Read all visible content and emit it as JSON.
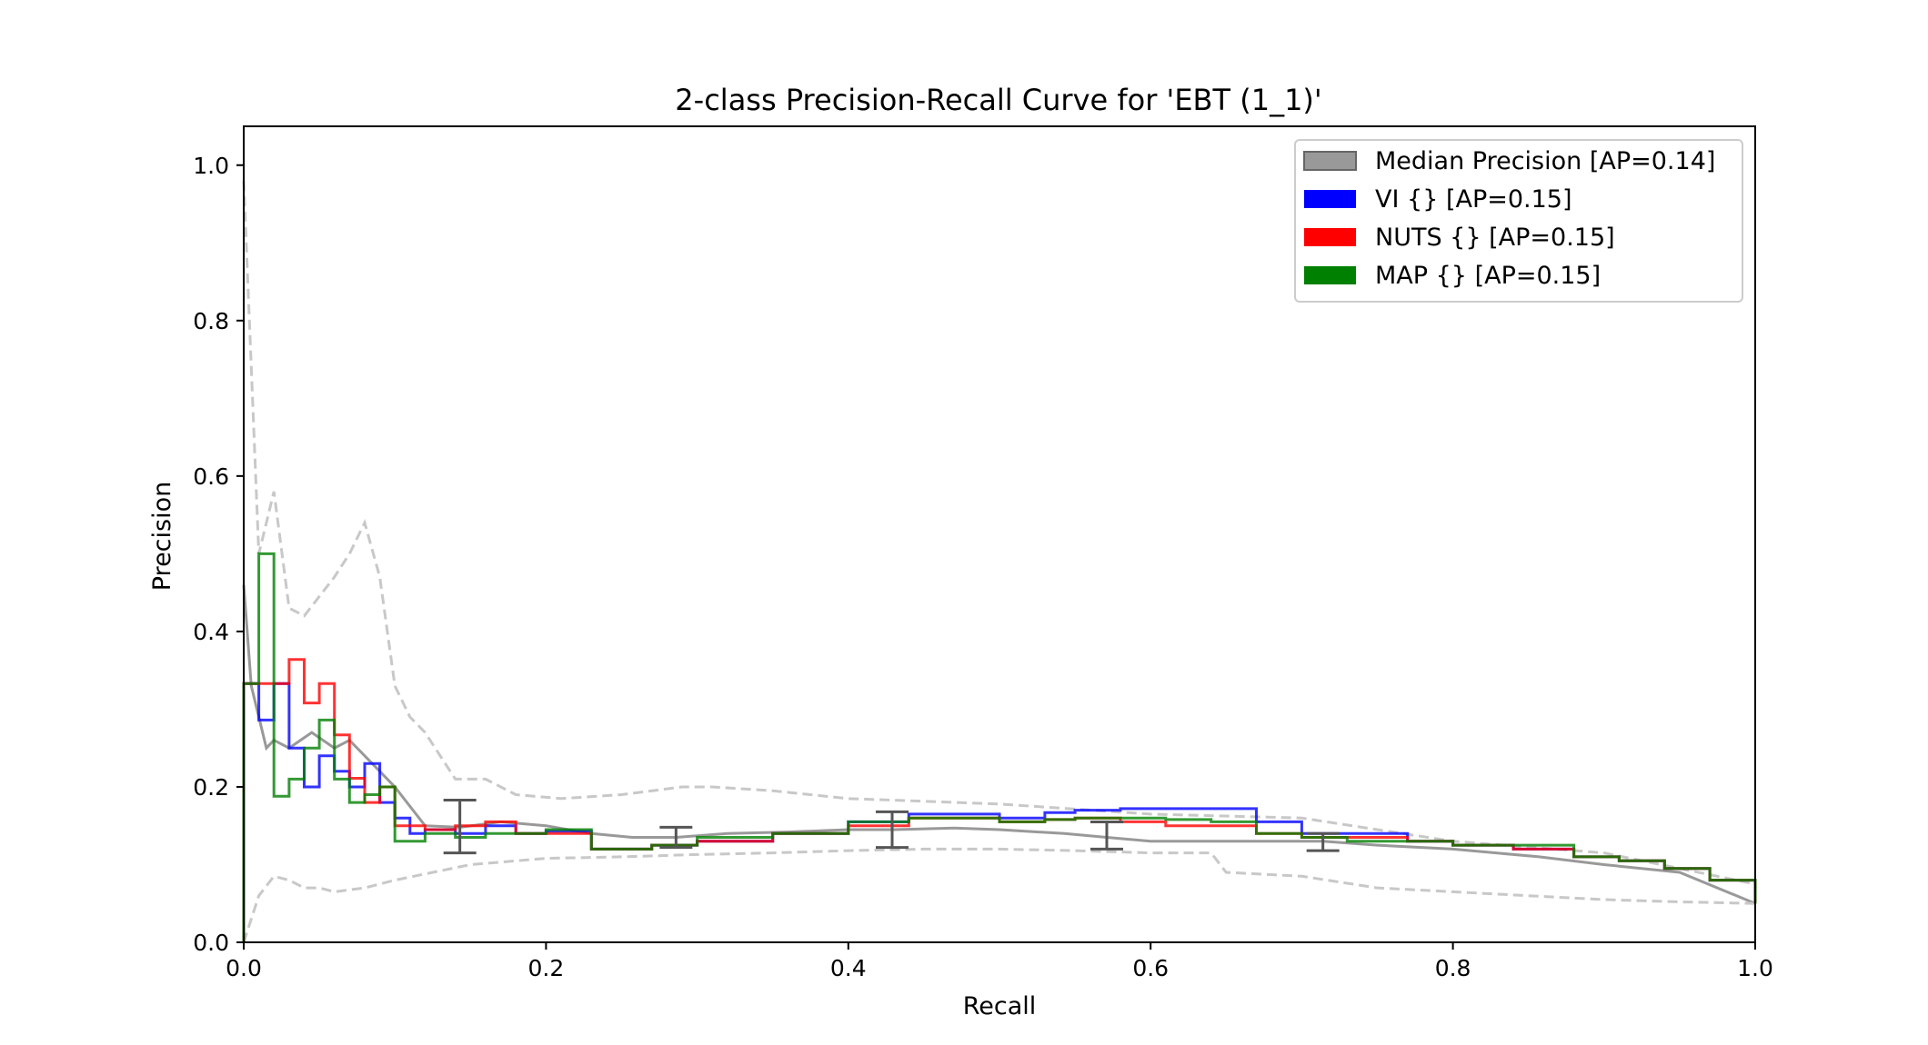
{
  "chart_data": {
    "type": "line",
    "title": "2-class Precision-Recall Curve for 'EBT (1_1)'",
    "xlabel": "Recall",
    "ylabel": "Precision",
    "xlim": [
      0,
      1
    ],
    "ylim": [
      0,
      1.05
    ],
    "xticks": [
      "0.0",
      "0.2",
      "0.4",
      "0.6",
      "0.8",
      "1.0"
    ],
    "yticks": [
      "0.0",
      "0.2",
      "0.4",
      "0.6",
      "0.8",
      "1.0"
    ],
    "grid": false,
    "legend_position": "top-right",
    "series": [
      {
        "name": "Median Precision [AP=0.14]",
        "color": "#808080",
        "style": "solid",
        "x": [
          0.0,
          0.005,
          0.015,
          0.02,
          0.03,
          0.045,
          0.06,
          0.07,
          0.09,
          0.1,
          0.12,
          0.143,
          0.17,
          0.2,
          0.23,
          0.257,
          0.286,
          0.32,
          0.36,
          0.4,
          0.43,
          0.47,
          0.5,
          0.543,
          0.571,
          0.6,
          0.643,
          0.7,
          0.714,
          0.75,
          0.8,
          0.857,
          0.9,
          0.95,
          1.0
        ],
        "y": [
          0.46,
          0.33,
          0.25,
          0.26,
          0.25,
          0.27,
          0.25,
          0.26,
          0.22,
          0.2,
          0.15,
          0.148,
          0.155,
          0.15,
          0.14,
          0.135,
          0.135,
          0.14,
          0.142,
          0.145,
          0.145,
          0.147,
          0.145,
          0.14,
          0.135,
          0.13,
          0.13,
          0.13,
          0.13,
          0.125,
          0.12,
          0.11,
          0.1,
          0.09,
          0.05
        ]
      },
      {
        "name": "upper percentile",
        "color": "#c8c8c8",
        "style": "dashed",
        "x": [
          0.0,
          0.01,
          0.02,
          0.03,
          0.04,
          0.06,
          0.07,
          0.08,
          0.09,
          0.1,
          0.11,
          0.12,
          0.14,
          0.16,
          0.18,
          0.21,
          0.25,
          0.29,
          0.31,
          0.35,
          0.4,
          0.5,
          0.6,
          0.7,
          0.75,
          0.8,
          0.9,
          1.0
        ],
        "y": [
          0.98,
          0.5,
          0.58,
          0.43,
          0.42,
          0.47,
          0.5,
          0.54,
          0.47,
          0.33,
          0.29,
          0.27,
          0.21,
          0.21,
          0.19,
          0.185,
          0.19,
          0.2,
          0.2,
          0.195,
          0.185,
          0.178,
          0.165,
          0.16,
          0.145,
          0.13,
          0.115,
          0.075
        ]
      },
      {
        "name": "lower percentile",
        "color": "#c8c8c8",
        "style": "dashed",
        "x": [
          0.0,
          0.005,
          0.01,
          0.02,
          0.03,
          0.04,
          0.05,
          0.06,
          0.08,
          0.1,
          0.15,
          0.2,
          0.25,
          0.3,
          0.35,
          0.4,
          0.45,
          0.5,
          0.55,
          0.6,
          0.64,
          0.65,
          0.7,
          0.75,
          0.8,
          0.85,
          0.9,
          0.95,
          1.0
        ],
        "y": [
          0.0,
          0.03,
          0.06,
          0.085,
          0.08,
          0.07,
          0.07,
          0.065,
          0.07,
          0.08,
          0.1,
          0.108,
          0.11,
          0.113,
          0.115,
          0.118,
          0.12,
          0.12,
          0.118,
          0.115,
          0.115,
          0.09,
          0.085,
          0.07,
          0.065,
          0.06,
          0.055,
          0.052,
          0.05
        ]
      },
      {
        "name": "VI {} [AP=0.15]",
        "color": "#0000ff",
        "style": "step",
        "x": [
          0.0,
          0.01,
          0.02,
          0.03,
          0.04,
          0.05,
          0.06,
          0.07,
          0.08,
          0.09,
          0.1,
          0.11,
          0.12,
          0.14,
          0.16,
          0.18,
          0.2,
          0.23,
          0.27,
          0.3,
          0.35,
          0.4,
          0.44,
          0.47,
          0.5,
          0.53,
          0.55,
          0.58,
          0.61,
          0.64,
          0.67,
          0.7,
          0.73,
          0.77,
          0.8,
          0.84,
          0.88,
          0.91,
          0.94,
          0.97,
          1.0
        ],
        "y": [
          0.333,
          0.286,
          0.333,
          0.25,
          0.2,
          0.24,
          0.22,
          0.2,
          0.23,
          0.18,
          0.16,
          0.14,
          0.145,
          0.14,
          0.15,
          0.14,
          0.143,
          0.12,
          0.125,
          0.13,
          0.14,
          0.155,
          0.165,
          0.165,
          0.16,
          0.167,
          0.17,
          0.172,
          0.172,
          0.172,
          0.155,
          0.14,
          0.14,
          0.13,
          0.125,
          0.12,
          0.11,
          0.105,
          0.095,
          0.08,
          0.065
        ]
      },
      {
        "name": "NUTS {} [AP=0.15]",
        "color": "#ff0000",
        "style": "step",
        "x": [
          0.0,
          0.01,
          0.02,
          0.03,
          0.04,
          0.05,
          0.06,
          0.07,
          0.08,
          0.09,
          0.1,
          0.12,
          0.14,
          0.16,
          0.18,
          0.2,
          0.23,
          0.27,
          0.3,
          0.35,
          0.4,
          0.44,
          0.47,
          0.5,
          0.53,
          0.55,
          0.58,
          0.61,
          0.64,
          0.67,
          0.7,
          0.73,
          0.77,
          0.8,
          0.84,
          0.88,
          0.91,
          0.94,
          0.97,
          1.0
        ],
        "y": [
          0.333,
          0.333,
          0.333,
          0.364,
          0.308,
          0.333,
          0.267,
          0.211,
          0.18,
          0.2,
          0.15,
          0.145,
          0.15,
          0.155,
          0.14,
          0.14,
          0.12,
          0.125,
          0.13,
          0.14,
          0.15,
          0.16,
          0.16,
          0.155,
          0.158,
          0.16,
          0.155,
          0.15,
          0.15,
          0.14,
          0.135,
          0.135,
          0.13,
          0.125,
          0.12,
          0.11,
          0.105,
          0.095,
          0.08,
          0.05
        ]
      },
      {
        "name": "MAP {} [AP=0.15]",
        "color": "#008000",
        "style": "step",
        "x": [
          0.0,
          0.01,
          0.02,
          0.03,
          0.04,
          0.05,
          0.06,
          0.07,
          0.08,
          0.09,
          0.1,
          0.12,
          0.14,
          0.16,
          0.18,
          0.2,
          0.23,
          0.27,
          0.3,
          0.35,
          0.4,
          0.44,
          0.47,
          0.5,
          0.53,
          0.55,
          0.58,
          0.61,
          0.64,
          0.67,
          0.7,
          0.73,
          0.77,
          0.8,
          0.84,
          0.88,
          0.91,
          0.94,
          0.97,
          1.0
        ],
        "y": [
          0.333,
          0.5,
          0.188,
          0.21,
          0.25,
          0.286,
          0.21,
          0.18,
          0.19,
          0.2,
          0.13,
          0.14,
          0.135,
          0.14,
          0.14,
          0.145,
          0.12,
          0.125,
          0.135,
          0.14,
          0.155,
          0.16,
          0.16,
          0.155,
          0.158,
          0.16,
          0.16,
          0.158,
          0.155,
          0.14,
          0.135,
          0.13,
          0.13,
          0.125,
          0.125,
          0.11,
          0.105,
          0.095,
          0.08,
          0.05
        ]
      }
    ],
    "error_bars": {
      "color": "#555555",
      "x": [
        0.143,
        0.286,
        0.429,
        0.571,
        0.714
      ],
      "center": [
        0.148,
        0.135,
        0.145,
        0.137,
        0.13
      ],
      "low": [
        0.115,
        0.122,
        0.122,
        0.12,
        0.118
      ],
      "high": [
        0.183,
        0.148,
        0.168,
        0.155,
        0.14
      ]
    },
    "legend": [
      {
        "label": "Median Precision [AP=0.14]",
        "color": "#999999",
        "border": "#666666"
      },
      {
        "label": "VI {} [AP=0.15]",
        "color": "#0000ff",
        "border": "#0000ff"
      },
      {
        "label": "NUTS {} [AP=0.15]",
        "color": "#ff0000",
        "border": "#ff0000"
      },
      {
        "label": "MAP {} [AP=0.15]",
        "color": "#008000",
        "border": "#008000"
      }
    ]
  }
}
